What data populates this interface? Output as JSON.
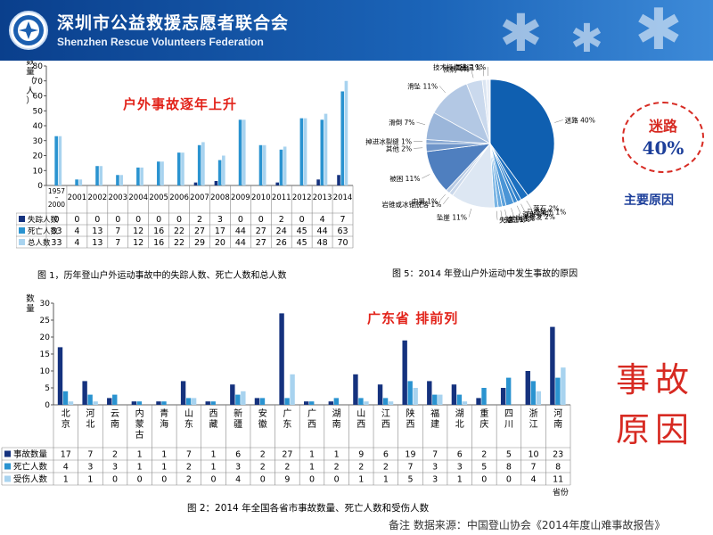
{
  "header": {
    "title_cn": "深圳市公益救援志愿者联合会",
    "title_en": "Shenzhen Rescue Volunteers Federation",
    "logo_icon": "rescue-federation-logo-icon"
  },
  "colors": {
    "missing": "#15327e",
    "deaths": "#2a93d0",
    "total": "#a8d3ef",
    "accent_red": "#e2231a",
    "header_blue": "#0a3f8c"
  },
  "fig1_annotation": "户外事故逐年上升",
  "fig2_annotation": "广东省 排前列",
  "side": {
    "badge_line1": "迷路",
    "badge_line2": "40%",
    "main_reason": "主要原因",
    "big_title_1": "事故",
    "big_title_2": "原因"
  },
  "footnote": "备注  数据来源：中国登山协会《2014年度山难事故报告》",
  "chart_data": [
    {
      "type": "bar",
      "caption": "图 1，历年登山户外运动事故中的失踪人数、死亡人数和总人数",
      "ylabel": "数量（人）",
      "ylim": [
        0,
        80
      ],
      "yticks": [
        0,
        10,
        20,
        30,
        40,
        50,
        60,
        70,
        80
      ],
      "categories": [
        "1957–2000",
        "2001",
        "2002",
        "2003",
        "2004",
        "2005",
        "2006",
        "2007",
        "2008",
        "2009",
        "2010",
        "2011",
        "2012",
        "2013",
        "2014"
      ],
      "series": [
        {
          "name": "失踪人数",
          "values": [
            0,
            0,
            0,
            0,
            0,
            0,
            0,
            2,
            3,
            0,
            0,
            2,
            0,
            4,
            7
          ]
        },
        {
          "name": "死亡人数",
          "values": [
            33,
            4,
            13,
            7,
            12,
            16,
            22,
            27,
            17,
            44,
            27,
            24,
            45,
            44,
            63
          ]
        },
        {
          "name": "总人数",
          "values": [
            33,
            4,
            13,
            7,
            12,
            16,
            22,
            29,
            20,
            44,
            27,
            26,
            45,
            48,
            70
          ]
        }
      ],
      "grid": false,
      "legend": "table-below"
    },
    {
      "type": "pie",
      "caption": "图 5：2014 年登山户外运动中发生事故的原因",
      "slices": [
        {
          "label": "迷路",
          "value": 40,
          "display": "迷路 40%",
          "color": "#0f5fb0"
        },
        {
          "label": "落石",
          "value": 2,
          "display": "落石 2%",
          "color": "#1c6fbf"
        },
        {
          "label": "马蜂蛰伤",
          "value": 1,
          "display": "马蜂蛰伤 1%",
          "color": "#2a7cc8"
        },
        {
          "label": "溺水",
          "value": 1,
          "display": "溺水 1%",
          "color": "#3a89cf"
        },
        {
          "label": "山洪暴发",
          "value": 2,
          "display": "山洪暴发 2%",
          "color": "#4a95d6"
        },
        {
          "label": "蛇伤",
          "value": 1,
          "display": "蛇伤 1%",
          "color": "#5aa0db"
        },
        {
          "label": "失控",
          "value": 1,
          "display": "失控 1%",
          "color": "#6aabe0"
        },
        {
          "label": "失温",
          "value": 1,
          "display": "失温 1%",
          "color": "#7ab5e4"
        },
        {
          "label": "坠崖",
          "value": 11,
          "display": "坠崖 11%",
          "color": "#dde7f3"
        },
        {
          "label": "岩锥或冰锥脱落",
          "value": 1,
          "display": "岩锥或冰锥脱落 1%",
          "color": "#c9d7ea"
        },
        {
          "label": "中暑",
          "value": 1,
          "display": "中暑 1%",
          "color": "#b9cbe3"
        },
        {
          "label": "被困",
          "value": 11,
          "display": "被困 11%",
          "color": "#4f7fbf"
        },
        {
          "label": "其他",
          "value": 2,
          "display": "其他 2%",
          "color": "#6f95c9"
        },
        {
          "label": "掉进冰裂缝",
          "value": 1,
          "display": "掉进冰裂缝 1%",
          "color": "#85a6d2"
        },
        {
          "label": "滑倒",
          "value": 7,
          "display": "滑倒 7%",
          "color": "#9bb6da"
        },
        {
          "label": "滑坠",
          "value": 11,
          "display": "滑坠 11%",
          "color": "#b3c8e4"
        },
        {
          "label": "疾病",
          "value": 4,
          "display": "疾病 4%",
          "color": "#cad9ed"
        },
        {
          "label": "雷击",
          "value": 1,
          "display": "雷击 1%",
          "color": "#dbe5f2"
        },
        {
          "label": "技术操作错误",
          "value": 1,
          "display": "技术操作错误 1%",
          "color": "#e8eef7"
        }
      ]
    },
    {
      "type": "bar",
      "caption": "图 2：2014 年全国各省市事故数量、死亡人数和受伤人数",
      "ylabel": "数量",
      "xlabel": "省份",
      "ylim": [
        0,
        30
      ],
      "yticks": [
        0,
        5,
        10,
        15,
        20,
        25,
        30
      ],
      "categories": [
        "北京",
        "河北",
        "云南",
        "内蒙古",
        "青海",
        "山东",
        "西藏",
        "新疆",
        "安徽",
        "广东",
        "广西",
        "湖南",
        "山西",
        "江西",
        "陕西",
        "福建",
        "湖北",
        "重庆",
        "四川",
        "浙江",
        "河南"
      ],
      "series": [
        {
          "name": "事故数量",
          "values": [
            17,
            7,
            2,
            1,
            1,
            7,
            1,
            6,
            2,
            27,
            1,
            1,
            9,
            6,
            19,
            7,
            6,
            2,
            5,
            10,
            23
          ]
        },
        {
          "name": "死亡人数",
          "values": [
            4,
            3,
            3,
            1,
            1,
            2,
            1,
            3,
            2,
            2,
            1,
            2,
            2,
            2,
            7,
            3,
            3,
            5,
            8,
            7,
            8
          ]
        },
        {
          "name": "受伤人数",
          "values": [
            1,
            1,
            0,
            0,
            0,
            2,
            0,
            4,
            0,
            9,
            0,
            0,
            1,
            1,
            5,
            3,
            1,
            0,
            0,
            4,
            11
          ]
        }
      ],
      "grid": false,
      "legend": "table-below"
    }
  ]
}
